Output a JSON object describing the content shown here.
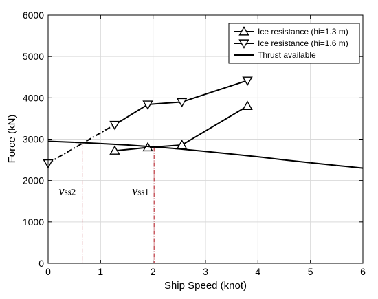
{
  "chart_data": {
    "type": "line",
    "xlabel": "Ship Speed (knot)",
    "ylabel": "Force (kN)",
    "xlim": [
      0,
      6
    ],
    "ylim": [
      0,
      6000
    ],
    "xticks": [
      "0",
      "1",
      "2",
      "3",
      "4",
      "5",
      "6"
    ],
    "yticks": [
      "0",
      "1000",
      "2000",
      "3000",
      "4000",
      "5000",
      "6000"
    ],
    "grid": true,
    "legend_position": "top-right",
    "series": [
      {
        "name": "Ice resistance (hi=1.3 m)",
        "marker": "triangle-up",
        "x": [
          1.27,
          1.9,
          2.55,
          3.8
        ],
        "y": [
          2720,
          2800,
          2860,
          3800
        ]
      },
      {
        "name": "Ice resistance (hi=1.6 m)",
        "marker": "triangle-down",
        "x": [
          0.0,
          1.27,
          1.9,
          2.55,
          3.8
        ],
        "y": [
          2420,
          3350,
          3840,
          3900,
          4420
        ],
        "dashed_segments": [
          0
        ]
      },
      {
        "name": "Thrust available",
        "marker": "none",
        "x": [
          0,
          0.5,
          1,
          1.5,
          2,
          2.5,
          3,
          3.5,
          4,
          4.5,
          5,
          5.5,
          6
        ],
        "y": [
          2950,
          2925,
          2895,
          2860,
          2815,
          2765,
          2705,
          2640,
          2575,
          2500,
          2430,
          2365,
          2300
        ]
      }
    ],
    "annotations": [
      {
        "label": "v",
        "sub": "ss2",
        "x": 0.65,
        "line_top_y": 2915
      },
      {
        "label": "v",
        "sub": "ss1",
        "x": 2.02,
        "line_top_y": 2800
      }
    ],
    "colors": {
      "series": "#000000",
      "guide": "#b4141e",
      "grid": "#d9d9d9"
    }
  }
}
